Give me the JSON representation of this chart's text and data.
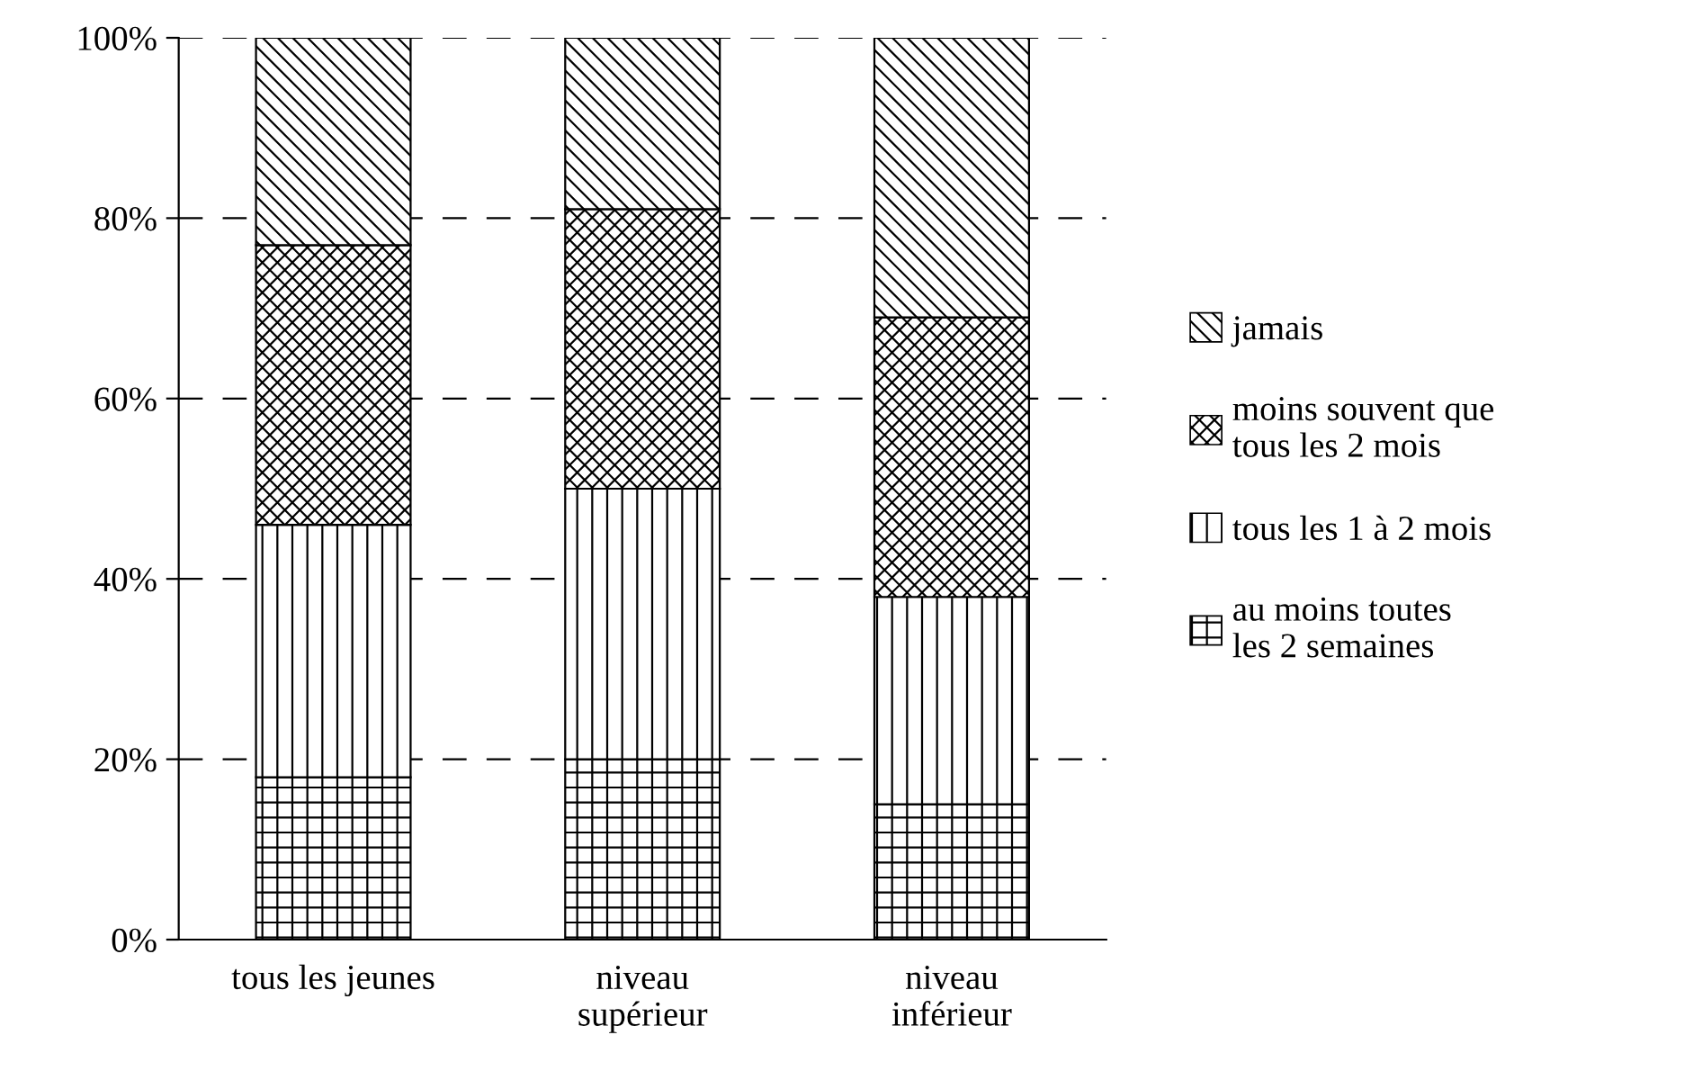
{
  "chart_data": {
    "type": "bar",
    "stacked": true,
    "categories": [
      "tous les jeunes",
      "niveau\nsupérieur",
      "niveau\ninférieur"
    ],
    "series": [
      {
        "name": "au moins toutes\nles 2 semaines",
        "color": "#000000",
        "values": [
          18,
          20,
          15
        ]
      },
      {
        "name": "tous les 1 à 2 mois",
        "color": "#000000",
        "values": [
          28,
          30,
          23
        ]
      },
      {
        "name": "moins souvent que\ntous les 2 mois",
        "color": "#000000",
        "values": [
          31,
          31,
          31
        ]
      },
      {
        "name": "jamais",
        "color": "#000000",
        "values": [
          23,
          19,
          31
        ]
      }
    ],
    "ylim": [
      0,
      100
    ],
    "yticks": [
      {
        "value": 0,
        "label": "0%"
      },
      {
        "value": 20,
        "label": "20%"
      },
      {
        "value": 40,
        "label": "40%"
      },
      {
        "value": 60,
        "label": "60%"
      },
      {
        "value": 80,
        "label": "80%"
      },
      {
        "value": 100,
        "label": "100%"
      }
    ],
    "grid": "y",
    "legend": "right"
  }
}
